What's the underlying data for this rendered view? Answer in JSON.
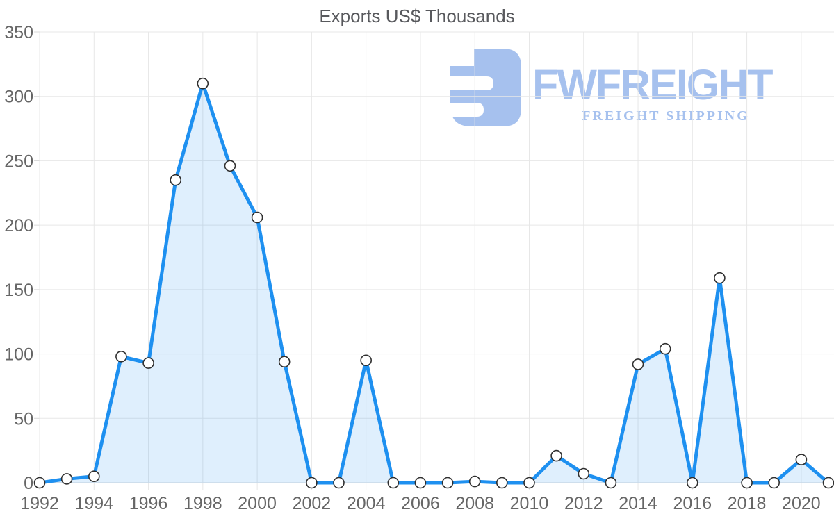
{
  "logo": {
    "wordmark": "FWFREIGHT",
    "subtitle": "FREIGHT SHIPPING",
    "color": "#a6c1ee"
  },
  "chart_data": {
    "type": "area",
    "title": "Exports US$ Thousands",
    "xlabel": "",
    "ylabel": "",
    "x": [
      1992,
      1993,
      1994,
      1995,
      1996,
      1997,
      1998,
      1999,
      2000,
      2001,
      2002,
      2003,
      2004,
      2005,
      2006,
      2007,
      2008,
      2009,
      2010,
      2011,
      2012,
      2013,
      2014,
      2015,
      2016,
      2017,
      2018,
      2019,
      2020,
      2021
    ],
    "values": [
      0,
      3,
      5,
      98,
      93,
      235,
      310,
      246,
      206,
      94,
      0,
      0,
      95,
      0,
      0,
      0,
      1,
      0,
      0,
      21,
      7,
      0,
      92,
      104,
      0,
      159,
      0,
      0,
      18,
      0
    ],
    "series_name": "Exports US$ Thousands",
    "ylim": [
      0,
      350
    ],
    "yticks": [
      0,
      50,
      100,
      150,
      200,
      250,
      300,
      350
    ],
    "xticks": [
      1992,
      1994,
      1996,
      1998,
      2000,
      2002,
      2004,
      2006,
      2008,
      2010,
      2012,
      2014,
      2016,
      2018,
      2020
    ],
    "grid": true,
    "legend": "none",
    "line_color": "#1e90f0",
    "fill_color": "rgba(30,144,240,0.14)",
    "gridline_color": "#e7e7e7",
    "axis_line_color": "#d8d8d8",
    "label_color": "#666666",
    "marker": {
      "fill": "#ffffff",
      "stroke": "#2f2f2f",
      "radius": 7.5
    }
  }
}
